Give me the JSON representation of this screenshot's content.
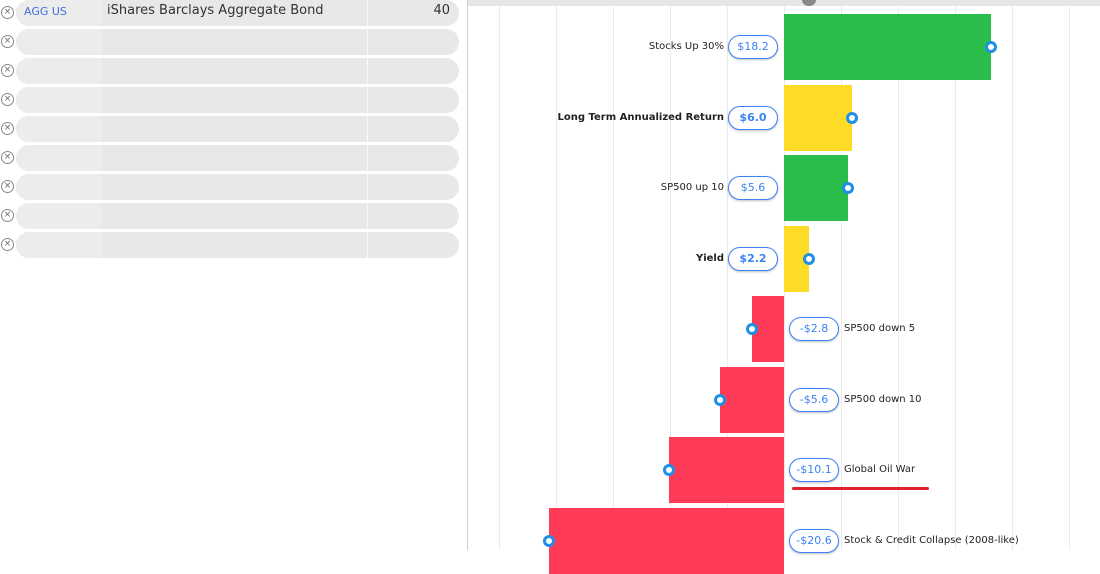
{
  "holdings": [
    {
      "ticker": "AGG US",
      "name": "iShares Barclays Aggregate Bond",
      "qty": "40"
    },
    {
      "ticker": "",
      "name": "",
      "qty": ""
    },
    {
      "ticker": "",
      "name": "",
      "qty": ""
    },
    {
      "ticker": "",
      "name": "",
      "qty": ""
    },
    {
      "ticker": "",
      "name": "",
      "qty": ""
    },
    {
      "ticker": "",
      "name": "",
      "qty": ""
    },
    {
      "ticker": "",
      "name": "",
      "qty": ""
    },
    {
      "ticker": "",
      "name": "",
      "qty": ""
    },
    {
      "ticker": "",
      "name": "",
      "qty": ""
    }
  ],
  "remove_glyph": "×",
  "chart_data": {
    "type": "bar",
    "orientation": "horizontal",
    "categories": [
      "Stocks Up 30%",
      "Long Term Annualized Return",
      "SP500 up 10",
      "Yield",
      "SP500 down 5",
      "SP500 down 10",
      "Global Oil War",
      "Stock & Credit Collapse (2008-like)"
    ],
    "values": [
      18.2,
      6.0,
      5.6,
      2.2,
      -2.8,
      -5.6,
      -10.1,
      -20.6
    ],
    "value_labels": [
      "$18.2",
      "$6.0",
      "$5.6",
      "$2.2",
      "-$2.8",
      "-$5.6",
      "-$10.1",
      "-$20.6"
    ],
    "bold": [
      false,
      true,
      false,
      true,
      false,
      false,
      false,
      false
    ],
    "colors": [
      "#2abd4b",
      "#fedb27",
      "#2abd4b",
      "#fedb27",
      "#ff3b57",
      "#ff3b57",
      "#ff3b57",
      "#ff3b57"
    ],
    "highlighted": "Global Oil War",
    "grid_step": 5,
    "xlim": [
      -25,
      30
    ],
    "grid": true
  }
}
